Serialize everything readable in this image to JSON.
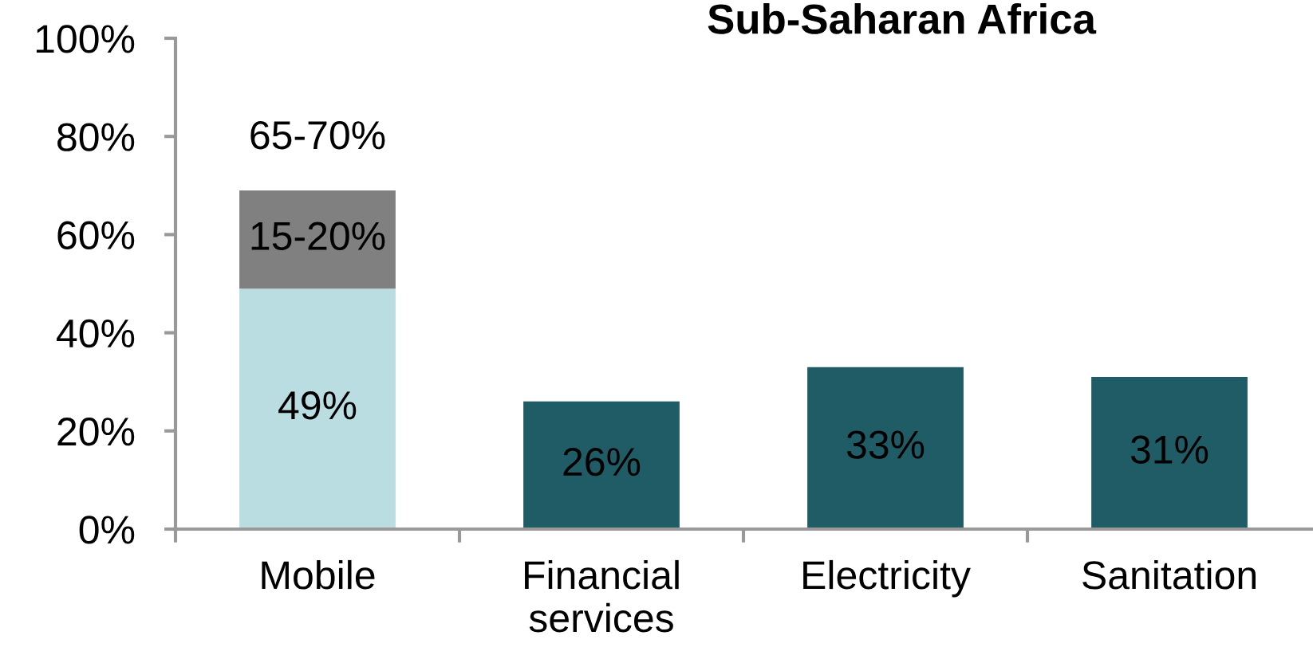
{
  "chart_data": {
    "type": "bar",
    "title": "Sub-Saharan Africa",
    "categories": [
      "Mobile",
      "Financial\nservices",
      "Electricity",
      "Sanitation"
    ],
    "stacked": true,
    "series": [
      {
        "colors": [
          "#badde1",
          "#1f5c66",
          "#1f5c66",
          "#1f5c66"
        ],
        "values": [
          49,
          26,
          33,
          31
        ],
        "value_labels": [
          "49%",
          "26%",
          "33%",
          "31%"
        ]
      },
      {
        "color": "#808080",
        "values": [
          20,
          null,
          null,
          null
        ]
      }
    ],
    "annotations": [
      "15-20%"
    ],
    "totals": [
      "65-70%",
      null,
      null,
      null
    ],
    "ylim": [
      0,
      100
    ],
    "yticks": [
      {
        "value": 0,
        "label": "0%"
      },
      {
        "value": 20,
        "label": "20%"
      },
      {
        "value": 40,
        "label": "40%"
      },
      {
        "value": 60,
        "label": "60%"
      },
      {
        "value": 80,
        "label": "80%"
      },
      {
        "value": 100,
        "label": "100%"
      }
    ]
  }
}
